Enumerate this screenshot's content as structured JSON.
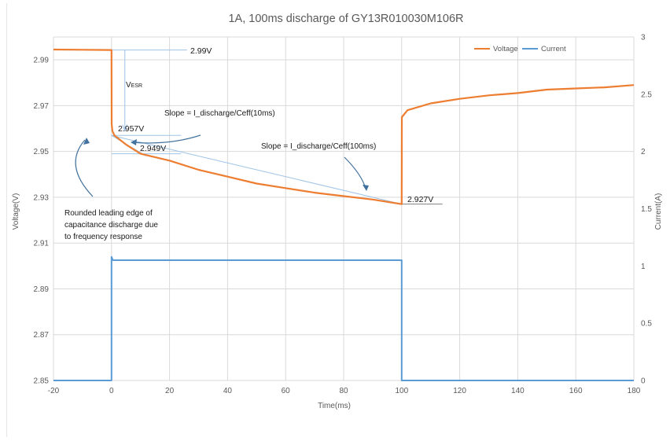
{
  "chart_data": {
    "type": "line",
    "title": "1A, 100ms discharge of GY13R010030M106R",
    "xlabel": "Time(ms)",
    "ylabel": "Voltage(V)",
    "y2label": "Current(A)",
    "xlim": [
      -20,
      180
    ],
    "ylim": [
      2.85,
      3.0
    ],
    "y2lim": [
      0,
      3
    ],
    "x_ticks": [
      "-20",
      "0",
      "20",
      "40",
      "60",
      "80",
      "100",
      "120",
      "140",
      "160",
      "180"
    ],
    "y_ticks": [
      "2.85",
      "2.87",
      "2.89",
      "2.91",
      "2.93",
      "2.95",
      "2.97",
      "2.99"
    ],
    "y2_ticks": [
      "0",
      "0.5",
      "1",
      "1.5",
      "2",
      "2.5",
      "3"
    ],
    "grid": true,
    "legend_position": "top-right",
    "series": [
      {
        "name": "Voltage",
        "axis": "left",
        "color": "#ED7D31",
        "points": [
          [
            -20,
            2.9945
          ],
          [
            -10,
            2.9944
          ],
          [
            0,
            2.9943
          ],
          [
            0.05,
            2.962
          ],
          [
            0.3,
            2.959
          ],
          [
            1,
            2.957
          ],
          [
            3,
            2.955
          ],
          [
            5,
            2.953
          ],
          [
            10,
            2.949
          ],
          [
            20,
            2.946
          ],
          [
            30,
            2.942
          ],
          [
            40,
            2.939
          ],
          [
            50,
            2.936
          ],
          [
            60,
            2.934
          ],
          [
            70,
            2.932
          ],
          [
            80,
            2.9305
          ],
          [
            90,
            2.929
          ],
          [
            100,
            2.927
          ],
          [
            100.05,
            2.965
          ],
          [
            102,
            2.968
          ],
          [
            110,
            2.971
          ],
          [
            120,
            2.973
          ],
          [
            130,
            2.9745
          ],
          [
            140,
            2.9755
          ],
          [
            150,
            2.977
          ],
          [
            160,
            2.9775
          ],
          [
            170,
            2.978
          ],
          [
            180,
            2.979
          ]
        ]
      },
      {
        "name": "Current",
        "axis": "right",
        "color": "#5B9BD5",
        "points": [
          [
            -20,
            0
          ],
          [
            0,
            0
          ],
          [
            0.01,
            1.08
          ],
          [
            0.5,
            1.05
          ],
          [
            100,
            1.05
          ],
          [
            100.01,
            0
          ],
          [
            180,
            0
          ]
        ]
      }
    ],
    "annotations": {
      "v_start": "2.99V",
      "v_esr_main": "V",
      "v_esr_sub": "ESR",
      "v_after_esr": "2.957V",
      "v_10ms": "2.949V",
      "v_end": "2.927V",
      "slope_10ms": "Slope = I_discharge/Ceff(10ms)",
      "slope_100ms": "Slope = I_discharge/Ceff(100ms)",
      "leading_edge": [
        "Rounded leading edge of",
        "capacitance discharge due",
        "to frequency response"
      ]
    }
  }
}
